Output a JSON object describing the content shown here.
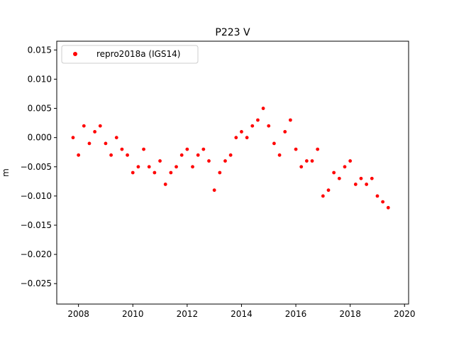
{
  "chart_data": {
    "type": "scatter",
    "title": "P223 V",
    "xlabel": "",
    "ylabel": "m",
    "xlim": [
      2007.2,
      2020.15
    ],
    "ylim": [
      -0.0285,
      0.0165
    ],
    "x_ticks": [
      2008,
      2010,
      2012,
      2014,
      2016,
      2018,
      2020
    ],
    "x_tick_labels": [
      "2008",
      "2010",
      "2012",
      "2014",
      "2016",
      "2018",
      "2020"
    ],
    "y_ticks": [
      -0.025,
      -0.02,
      -0.015,
      -0.01,
      -0.005,
      0.0,
      0.005,
      0.01,
      0.015
    ],
    "y_tick_labels": [
      "−0.025",
      "−0.020",
      "−0.015",
      "−0.010",
      "−0.005",
      "0.000",
      "0.005",
      "0.010",
      "0.015"
    ],
    "grid": false,
    "legend": {
      "position": "top-left"
    },
    "marker_color": "#ff0000",
    "series": [
      {
        "name": "repro2018a (IGS14)",
        "color": "#ff0000",
        "marker": "circle",
        "x": [
          2007.8,
          2008.0,
          2008.2,
          2008.4,
          2008.6,
          2008.8,
          2009.0,
          2009.2,
          2009.4,
          2009.6,
          2009.8,
          2010.0,
          2010.2,
          2010.4,
          2010.6,
          2010.8,
          2011.0,
          2011.2,
          2011.4,
          2011.6,
          2011.8,
          2012.0,
          2012.2,
          2012.4,
          2012.6,
          2012.8,
          2013.0,
          2013.2,
          2013.4,
          2013.6,
          2013.8,
          2014.0,
          2014.2,
          2014.4,
          2014.6,
          2014.8,
          2015.0,
          2015.2,
          2015.4,
          2015.6,
          2015.8,
          2016.0,
          2016.2,
          2016.4,
          2016.6,
          2016.8,
          2017.0,
          2017.2,
          2017.4,
          2017.6,
          2017.8,
          2018.0,
          2018.2,
          2018.4,
          2018.6,
          2018.8,
          2019.0,
          2019.2,
          2019.4
        ],
        "y": [
          0.0,
          -0.003,
          0.002,
          -0.001,
          0.001,
          0.002,
          -0.001,
          -0.003,
          0.0,
          -0.002,
          -0.003,
          -0.006,
          -0.005,
          -0.002,
          -0.005,
          -0.006,
          -0.004,
          -0.008,
          -0.006,
          -0.005,
          -0.003,
          -0.002,
          -0.005,
          -0.003,
          -0.002,
          -0.004,
          -0.009,
          -0.006,
          -0.004,
          -0.003,
          0.0,
          0.001,
          0.0,
          0.002,
          0.003,
          0.005,
          0.002,
          -0.001,
          -0.003,
          0.001,
          0.003,
          -0.002,
          -0.005,
          -0.004,
          -0.004,
          -0.002,
          -0.01,
          -0.009,
          -0.006,
          -0.007,
          -0.005,
          -0.004,
          -0.008,
          -0.007,
          -0.008,
          -0.007,
          -0.01,
          -0.011,
          -0.012
        ],
        "note": ""
      }
    ]
  }
}
